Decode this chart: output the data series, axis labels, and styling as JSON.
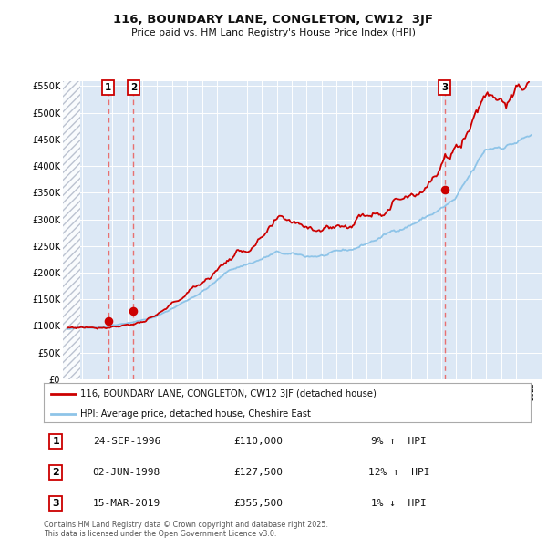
{
  "title": "116, BOUNDARY LANE, CONGLETON, CW12  3JF",
  "subtitle": "Price paid vs. HM Land Registry's House Price Index (HPI)",
  "legend_line1": "116, BOUNDARY LANE, CONGLETON, CW12 3JF (detached house)",
  "legend_line2": "HPI: Average price, detached house, Cheshire East",
  "hpi_color": "#8ec4e8",
  "price_color": "#cc0000",
  "bg_color": "#ffffff",
  "chart_bg": "#dce8f5",
  "grid_color": "#ffffff",
  "sale_annotations": [
    {
      "label": "1",
      "date": "24-SEP-1996",
      "price": "£110,000",
      "pct": "9%",
      "dir": "↑",
      "vs": "HPI"
    },
    {
      "label": "2",
      "date": "02-JUN-1998",
      "price": "£127,500",
      "pct": "12%",
      "dir": "↑",
      "vs": "HPI"
    },
    {
      "label": "3",
      "date": "15-MAR-2019",
      "price": "£355,500",
      "pct": "1%",
      "dir": "↓",
      "vs": "HPI"
    }
  ],
  "vline_color": "#e87070",
  "vline_x": [
    1996.73,
    1998.42,
    2019.21
  ],
  "ylim": [
    0,
    560000
  ],
  "yticks": [
    0,
    50000,
    100000,
    150000,
    200000,
    250000,
    300000,
    350000,
    400000,
    450000,
    500000,
    550000
  ],
  "ytick_labels": [
    "£0",
    "£50K",
    "£100K",
    "£150K",
    "£200K",
    "£250K",
    "£300K",
    "£350K",
    "£400K",
    "£450K",
    "£500K",
    "£550K"
  ],
  "xlim_start": 1993.7,
  "xlim_end": 2025.7,
  "footer": "Contains HM Land Registry data © Crown copyright and database right 2025.\nThis data is licensed under the Open Government Licence v3.0.",
  "sale_year_nums": [
    1996.73,
    1998.42,
    2019.21
  ],
  "sale_prices_plot": [
    110000,
    127500,
    355500
  ],
  "hatch_end": 1994.83
}
